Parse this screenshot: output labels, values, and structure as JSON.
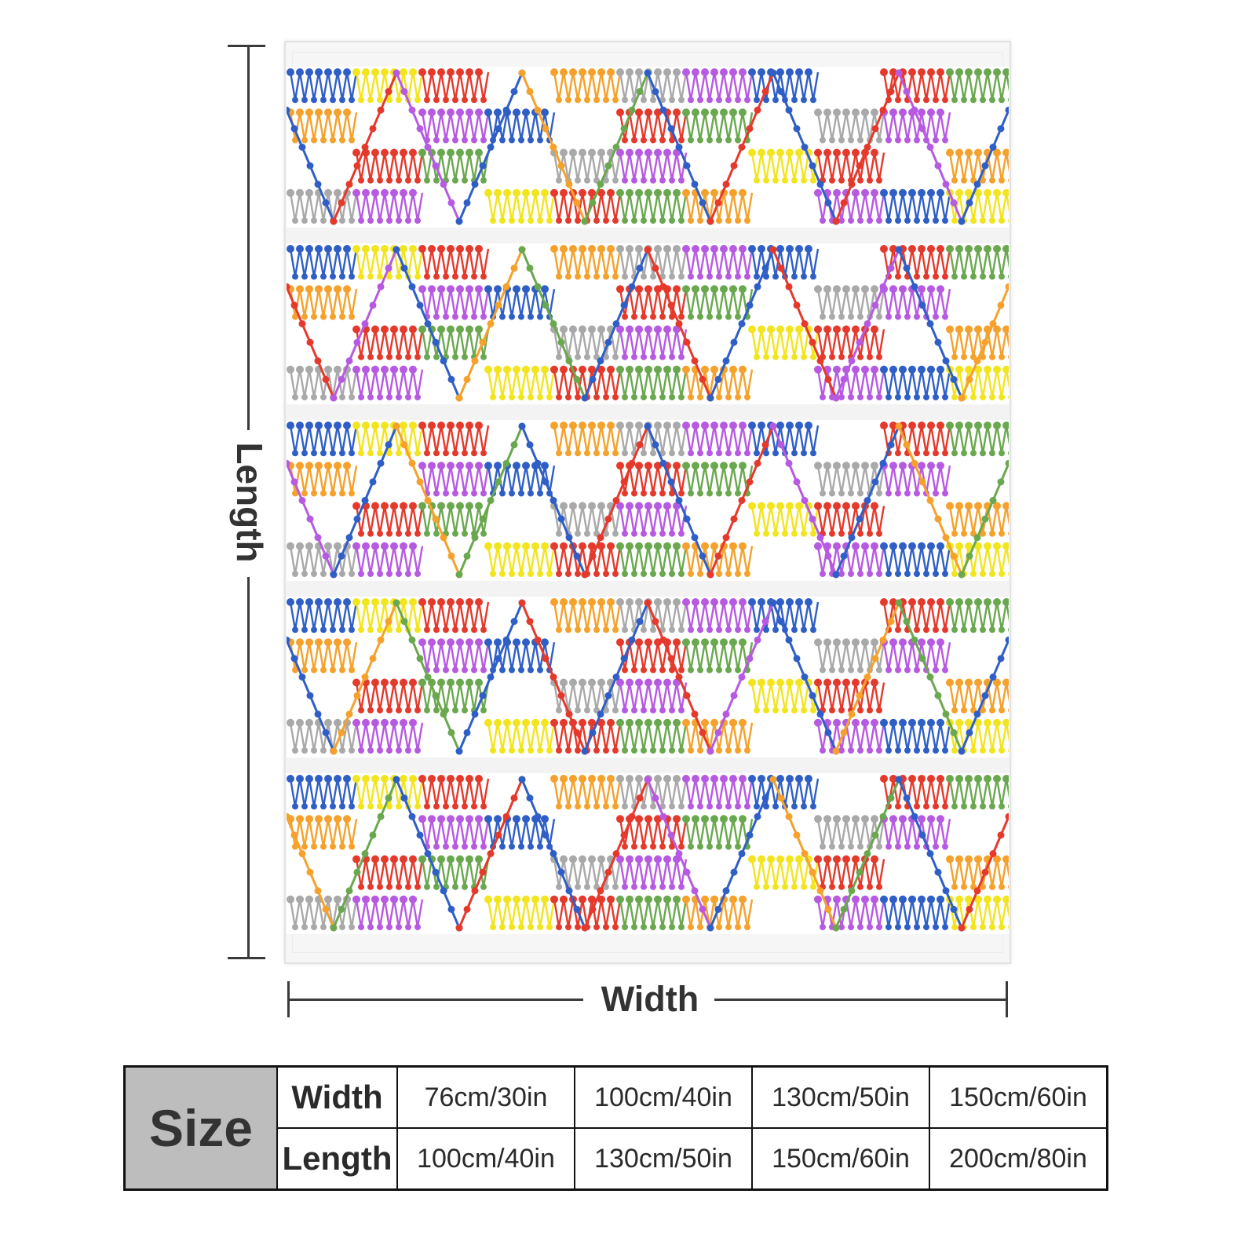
{
  "dimension_labels": {
    "length": "Length",
    "width": "Width"
  },
  "size_table": {
    "header": "Size",
    "rows": [
      {
        "label": "Width",
        "values": [
          "76cm/30in",
          "100cm/40in",
          "130cm/50in",
          "150cm/60in"
        ]
      },
      {
        "label": "Length",
        "values": [
          "100cm/40in",
          "130cm/50in",
          "150cm/60in",
          "200cm/80in"
        ]
      }
    ]
  },
  "pattern": {
    "palette": [
      "#e5392c",
      "#2f5fc6",
      "#a9a9a9",
      "#6aa84f",
      "#f2e51e",
      "#b75ae2",
      "#f5a12b"
    ],
    "accents": [
      "#2f5fc6",
      "#e5392c",
      "#b75ae2",
      "#2f5fc6",
      "#f5a12b",
      "#6aa84f",
      "#2f5fc6",
      "#e5392c"
    ]
  },
  "colors": {
    "size_cell_bg": "#bdbdbd",
    "line_color": "#3a3a3a"
  }
}
